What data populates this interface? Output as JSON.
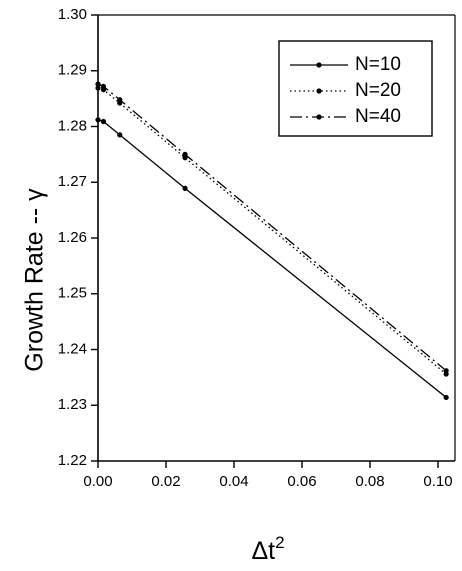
{
  "chart_data": {
    "type": "line",
    "title": "",
    "xlabel": "Δt",
    "xlabel_superscript": "2",
    "ylabel": "Growth Rate -- γ",
    "xlim": [
      0.0,
      0.105
    ],
    "ylim": [
      1.22,
      1.3
    ],
    "x_ticks": [
      0.0,
      0.02,
      0.04,
      0.06,
      0.08,
      0.1
    ],
    "x_tick_labels": [
      "0.00",
      "0.02",
      "0.04",
      "0.06",
      "0.08",
      "0.10"
    ],
    "y_ticks": [
      1.22,
      1.23,
      1.24,
      1.25,
      1.26,
      1.27,
      1.28,
      1.29,
      1.3
    ],
    "y_tick_labels": [
      "1.22",
      "1.23",
      "1.24",
      "1.25",
      "1.26",
      "1.27",
      "1.28",
      "1.29",
      "1.30"
    ],
    "grid": false,
    "legend_position": "top-right",
    "series": [
      {
        "name": "N=10",
        "line_style": "solid",
        "color": "#000000",
        "points": [
          {
            "x": 0.0,
            "y": 1.2812
          },
          {
            "x": 0.0016,
            "y": 1.2809
          },
          {
            "x": 0.0064,
            "y": 1.2785
          },
          {
            "x": 0.0256,
            "y": 1.2689
          },
          {
            "x": 0.1024,
            "y": 1.2314
          }
        ]
      },
      {
        "name": "N=20",
        "line_style": "dotted",
        "color": "#000000",
        "points": [
          {
            "x": 0.0,
            "y": 1.2869
          },
          {
            "x": 0.0016,
            "y": 1.2866
          },
          {
            "x": 0.0064,
            "y": 1.2842
          },
          {
            "x": 0.0256,
            "y": 1.2744
          },
          {
            "x": 0.1024,
            "y": 1.2356
          }
        ]
      },
      {
        "name": "N=40",
        "line_style": "dash-dot",
        "color": "#000000",
        "points": [
          {
            "x": 0.0,
            "y": 1.2876
          },
          {
            "x": 0.0016,
            "y": 1.2872
          },
          {
            "x": 0.0064,
            "y": 1.2848
          },
          {
            "x": 0.0256,
            "y": 1.275
          },
          {
            "x": 0.1024,
            "y": 1.2362
          }
        ]
      }
    ]
  }
}
